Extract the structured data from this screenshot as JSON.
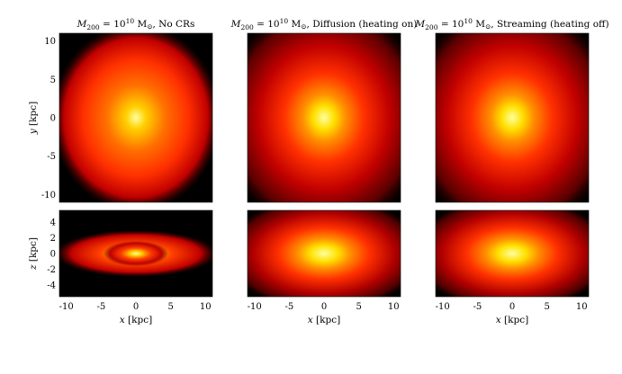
{
  "chart_data": {
    "type": "heatmap",
    "colormap": [
      "#000000",
      "#5a0000",
      "#c00000",
      "#ff3000",
      "#ff9000",
      "#ffe000",
      "#ffffa0"
    ],
    "grid": false,
    "x_axis": {
      "label": "x [kpc]",
      "range": [
        -11,
        11
      ],
      "ticks": [
        -10,
        -5,
        0,
        5,
        10
      ]
    },
    "panels": [
      {
        "title": "M200 = 10¹⁰ M⊙, No CRs",
        "title_parts": [
          "M",
          "200",
          " = 10",
          "10",
          " M",
          "⊙",
          ", No CRs"
        ],
        "face_on": {
          "y_label": "y [kpc]",
          "y_range": [
            -11,
            11
          ],
          "y_ticks": [
            -10,
            -5,
            0,
            5,
            10
          ]
        },
        "edge_on": {
          "y_label": "z [kpc]",
          "y_range": [
            -5.5,
            5.5
          ],
          "y_ticks": [
            -4,
            -2,
            0,
            2,
            4
          ]
        }
      },
      {
        "title": "M200 = 10¹⁰ M⊙, Diffusion (heating on)",
        "title_parts": [
          "M",
          "200",
          " = 10",
          "10",
          " M",
          "⊙",
          ", Diffusion (heating on)"
        ]
      },
      {
        "title": "M200 = 10¹⁰ M⊙, Streaming (heating off)",
        "title_parts": [
          "M",
          "200",
          " = 10",
          "10",
          " M",
          "⊙",
          ", Streaming (heating off)"
        ]
      }
    ]
  }
}
